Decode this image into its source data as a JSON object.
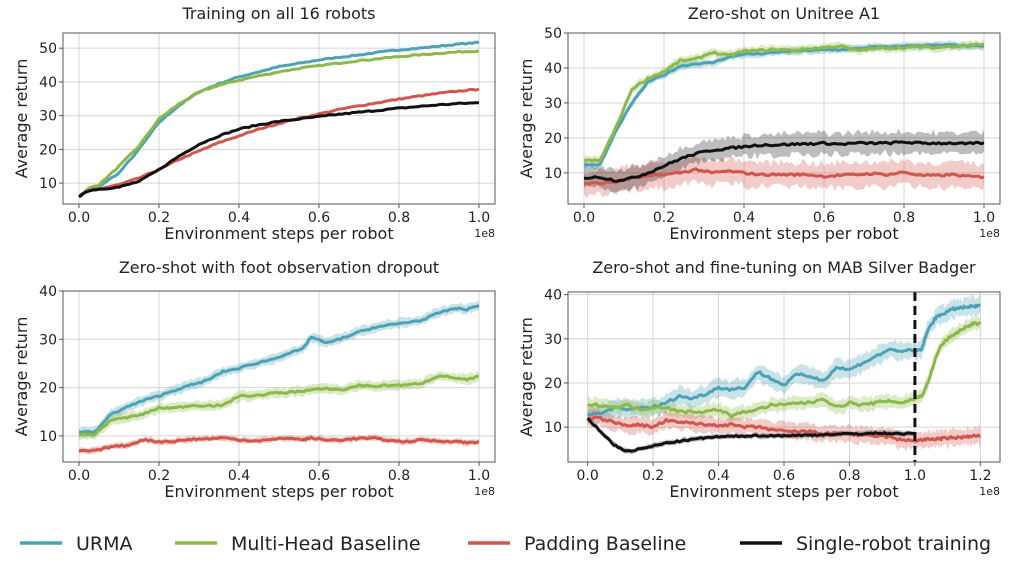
{
  "legend": [
    {
      "name": "URMA",
      "color": "#4ba3b5"
    },
    {
      "name": "Multi-Head Baseline",
      "color": "#8db84a"
    },
    {
      "name": "Padding Baseline",
      "color": "#d2564c"
    },
    {
      "name": "Single-robot training",
      "color": "#111111"
    }
  ],
  "chart_data": [
    {
      "type": "line",
      "title": "Training on all 16 robots",
      "xlabel": "Environment steps per robot",
      "ylabel": "Average return",
      "x_multiplier": "1e8",
      "xlim": [
        -0.04,
        1.04
      ],
      "ylim": [
        3.8,
        54.5
      ],
      "xticks": [
        0.0,
        0.2,
        0.4,
        0.6,
        0.8,
        1.0
      ],
      "xtick_labels": [
        "0.0",
        "0.2",
        "0.4",
        "0.6",
        "0.8",
        "1.0"
      ],
      "yticks": [
        10,
        20,
        30,
        40,
        50
      ],
      "ytick_labels": [
        "10",
        "20",
        "30",
        "40",
        "50"
      ],
      "grid": true,
      "x": [
        0.0,
        0.025,
        0.05,
        0.1,
        0.15,
        0.2,
        0.25,
        0.3,
        0.35,
        0.4,
        0.45,
        0.5,
        0.55,
        0.6,
        0.65,
        0.7,
        0.75,
        0.8,
        0.85,
        0.9,
        0.95,
        1.0
      ],
      "series": [
        {
          "name": "URMA",
          "band": 0.3,
          "values": [
            6,
            8.5,
            9,
            13,
            20,
            28,
            33,
            37,
            39.5,
            41.5,
            43,
            44.5,
            45.5,
            46.5,
            47.3,
            48,
            48.8,
            49.5,
            50,
            50.6,
            51.2,
            51.7
          ]
        },
        {
          "name": "Multi-Head Baseline",
          "band": 0.3,
          "values": [
            6,
            8.5,
            9.5,
            15,
            21,
            29,
            33.5,
            37,
            39,
            40.5,
            41.8,
            43,
            44,
            44.8,
            45.6,
            46.3,
            46.9,
            47.5,
            48,
            48.5,
            48.9,
            49.2
          ]
        },
        {
          "name": "Padding Baseline",
          "band": 0.3,
          "values": [
            6,
            7.8,
            8.3,
            9.5,
            11.5,
            14,
            17,
            19.5,
            22,
            24,
            26,
            27.7,
            29.2,
            30.5,
            31.8,
            32.9,
            33.9,
            34.9,
            35.8,
            36.6,
            37.3,
            37.8
          ]
        },
        {
          "name": "Single-robot training",
          "band": 0.3,
          "values": [
            6,
            7.8,
            8.2,
            8.8,
            10.5,
            14,
            18,
            21.5,
            24,
            26,
            27.3,
            28.3,
            29,
            29.7,
            30.4,
            31,
            31.6,
            32.2,
            32.7,
            33.2,
            33.6,
            33.8
          ]
        }
      ]
    },
    {
      "type": "line",
      "title": "Zero-shot on Unitree A1",
      "xlabel": "Environment steps per robot",
      "ylabel": "Average return",
      "x_multiplier": "1e8",
      "xlim": [
        -0.04,
        1.04
      ],
      "ylim": [
        1.1,
        50
      ],
      "xticks": [
        0.0,
        0.2,
        0.4,
        0.6,
        0.8,
        1.0
      ],
      "xtick_labels": [
        "0.0",
        "0.2",
        "0.4",
        "0.6",
        "0.8",
        "1.0"
      ],
      "yticks": [
        10,
        20,
        30,
        40,
        50
      ],
      "ytick_labels": [
        "10",
        "20",
        "30",
        "40",
        "50"
      ],
      "grid": true,
      "x": [
        0.0,
        0.04,
        0.08,
        0.12,
        0.16,
        0.2,
        0.24,
        0.28,
        0.32,
        0.36,
        0.4,
        0.44,
        0.48,
        0.52,
        0.56,
        0.6,
        0.64,
        0.68,
        0.72,
        0.76,
        0.8,
        0.84,
        0.88,
        0.92,
        0.96,
        1.0
      ],
      "series": [
        {
          "name": "URMA",
          "band": 1.0,
          "values": [
            12.3,
            12.3,
            22,
            30,
            36,
            38,
            40.5,
            41.2,
            41.5,
            43,
            44,
            44,
            44.5,
            44.8,
            45,
            45.2,
            45.2,
            45.5,
            46,
            46,
            46.3,
            46.4,
            46.5,
            46.6,
            46.2,
            46.3
          ]
        },
        {
          "name": "Multi-Head Baseline",
          "band": 1.2,
          "values": [
            13.5,
            13.5,
            23,
            34,
            37,
            39,
            42,
            42.5,
            44.5,
            43.5,
            44.8,
            45,
            45.3,
            45,
            45.5,
            45.8,
            46.3,
            45,
            45.5,
            45.8,
            45.8,
            46,
            45.8,
            46.2,
            46.5,
            46.8
          ]
        },
        {
          "name": "Padding Baseline",
          "band": 3.5,
          "values": [
            7,
            7,
            7.5,
            8.5,
            9,
            9.5,
            10,
            11,
            10,
            10.5,
            10,
            9.5,
            9.5,
            9.5,
            9.5,
            9,
            9.3,
            9.5,
            9.8,
            9.5,
            10.2,
            9.3,
            9.2,
            9.5,
            9,
            8.8
          ]
        },
        {
          "name": "Single-robot training",
          "band": 3.0,
          "values": [
            8.5,
            8.8,
            7.8,
            8.5,
            10,
            12,
            14,
            15.5,
            16.5,
            17,
            17.5,
            18,
            18,
            18.2,
            18.3,
            18.5,
            18.2,
            18.5,
            18.5,
            18.5,
            18.8,
            18.5,
            18.5,
            18.5,
            18.3,
            18.6
          ]
        }
      ]
    },
    {
      "type": "line",
      "title": "Zero-shot with foot observation dropout",
      "xlabel": "Environment steps per robot",
      "ylabel": "Average return",
      "x_multiplier": "1e8",
      "xlim": [
        -0.04,
        1.04
      ],
      "ylim": [
        4.6,
        40
      ],
      "xticks": [
        0.0,
        0.2,
        0.4,
        0.6,
        0.8,
        1.0
      ],
      "xtick_labels": [
        "0.0",
        "0.2",
        "0.4",
        "0.6",
        "0.8",
        "1.0"
      ],
      "yticks": [
        10,
        20,
        30,
        40
      ],
      "ytick_labels": [
        "10",
        "20",
        "30",
        "40"
      ],
      "grid": true,
      "x": [
        0.0,
        0.04,
        0.08,
        0.12,
        0.16,
        0.2,
        0.24,
        0.28,
        0.32,
        0.36,
        0.4,
        0.44,
        0.48,
        0.52,
        0.56,
        0.58,
        0.62,
        0.66,
        0.7,
        0.74,
        0.78,
        0.82,
        0.86,
        0.9,
        0.94,
        0.97,
        1.0
      ],
      "series": [
        {
          "name": "URMA",
          "band": 1.0,
          "values": [
            10.8,
            10.8,
            14.5,
            16,
            17.3,
            18.3,
            19.5,
            20.5,
            21.5,
            23.3,
            24,
            25,
            25.8,
            27,
            28,
            30.5,
            29.2,
            30.3,
            31.5,
            32.5,
            33,
            33.5,
            34,
            35.5,
            36.4,
            36.2,
            37
          ]
        },
        {
          "name": "Multi-Head Baseline",
          "band": 1.0,
          "values": [
            10.3,
            10.3,
            13.3,
            13.8,
            14.5,
            15.8,
            15.8,
            16.3,
            16.3,
            16.3,
            18.3,
            18.3,
            18.8,
            19,
            19.3,
            19.5,
            19.8,
            19.5,
            20.5,
            20.3,
            20.5,
            20.5,
            21,
            22.5,
            22,
            21.6,
            22.3
          ]
        },
        {
          "name": "Padding Baseline",
          "band": 0.6,
          "values": [
            6.9,
            6.9,
            7.8,
            8.0,
            9.2,
            8.8,
            8.9,
            9.3,
            9.4,
            9.6,
            9.2,
            9.0,
            9.2,
            9.6,
            9.2,
            9.6,
            9.1,
            9.2,
            9.5,
            9.5,
            9.0,
            8.8,
            9.2,
            8.9,
            8.9,
            8.6,
            8.8
          ]
        }
      ]
    },
    {
      "type": "line",
      "title": "Zero-shot and fine-tuning on MAB Silver Badger",
      "xlabel": "Environment steps per robot",
      "ylabel": "Average return",
      "x_multiplier": "1e8",
      "xlim": [
        -0.06,
        1.26
      ],
      "ylim": [
        2.1,
        40.6
      ],
      "xticks": [
        0.0,
        0.2,
        0.4,
        0.6,
        0.8,
        1.0,
        1.2
      ],
      "xtick_labels": [
        "0.0",
        "0.2",
        "0.4",
        "0.6",
        "0.8",
        "1.0",
        "1.2"
      ],
      "yticks": [
        10,
        20,
        30,
        40
      ],
      "ytick_labels": [
        "10",
        "20",
        "30",
        "40"
      ],
      "grid": true,
      "vline": {
        "x": 1.0,
        "style": "dashed"
      },
      "x": [
        0.0,
        0.04,
        0.08,
        0.12,
        0.16,
        0.2,
        0.24,
        0.28,
        0.32,
        0.36,
        0.4,
        0.44,
        0.48,
        0.52,
        0.56,
        0.6,
        0.64,
        0.68,
        0.72,
        0.76,
        0.8,
        0.84,
        0.88,
        0.92,
        0.96,
        1.0,
        1.02,
        1.04,
        1.06,
        1.08,
        1.1,
        1.12,
        1.14,
        1.16,
        1.18,
        1.2
      ],
      "series": [
        {
          "name": "URMA",
          "band": 2.0,
          "values": [
            13,
            13,
            14.5,
            13.8,
            14.5,
            14.5,
            15.5,
            17,
            16.5,
            17.5,
            19,
            18.5,
            19,
            22.5,
            21,
            19.5,
            22,
            21.5,
            20.5,
            23.5,
            23,
            24.5,
            26,
            27.5,
            27.3,
            27.3,
            27.5,
            32,
            34.5,
            35.5,
            36.2,
            36.8,
            37,
            37.2,
            37.3,
            37.5
          ]
        },
        {
          "name": "Multi-Head Baseline",
          "band": 1.5,
          "values": [
            15,
            15,
            14.5,
            15,
            14,
            14.5,
            14.5,
            13.5,
            13.5,
            13.5,
            14,
            12.5,
            13.5,
            14,
            15,
            15,
            15.5,
            15.5,
            16.5,
            14.5,
            15.5,
            15,
            15.5,
            16,
            15.5,
            16.5,
            17,
            20,
            25,
            28.5,
            30,
            31,
            32,
            32.8,
            33.5,
            33.3
          ]
        },
        {
          "name": "Padding Baseline",
          "band": 1.8,
          "values": [
            12,
            12,
            11,
            10.5,
            10.5,
            10,
            11.5,
            11,
            11,
            10.5,
            10.5,
            10.5,
            10,
            10,
            9.5,
            9,
            9,
            9,
            8.5,
            8.5,
            8.5,
            8,
            8,
            7.8,
            7,
            7,
            7.1,
            7.2,
            7.3,
            7.4,
            7.5,
            7.6,
            7.7,
            7.8,
            7.9,
            8.0
          ]
        },
        {
          "name": "Single-robot training",
          "band": 0.6,
          "x_max": 1.0,
          "values": [
            12,
            9,
            6,
            4.5,
            5,
            5.7,
            6.4,
            6.8,
            7.2,
            7.6,
            7.8,
            7.9,
            8.0,
            8.1,
            8.0,
            8.1,
            8.1,
            8.2,
            8.3,
            8.4,
            8.5,
            8.5,
            8.6,
            8.6,
            8.5,
            8.5
          ]
        }
      ]
    }
  ]
}
